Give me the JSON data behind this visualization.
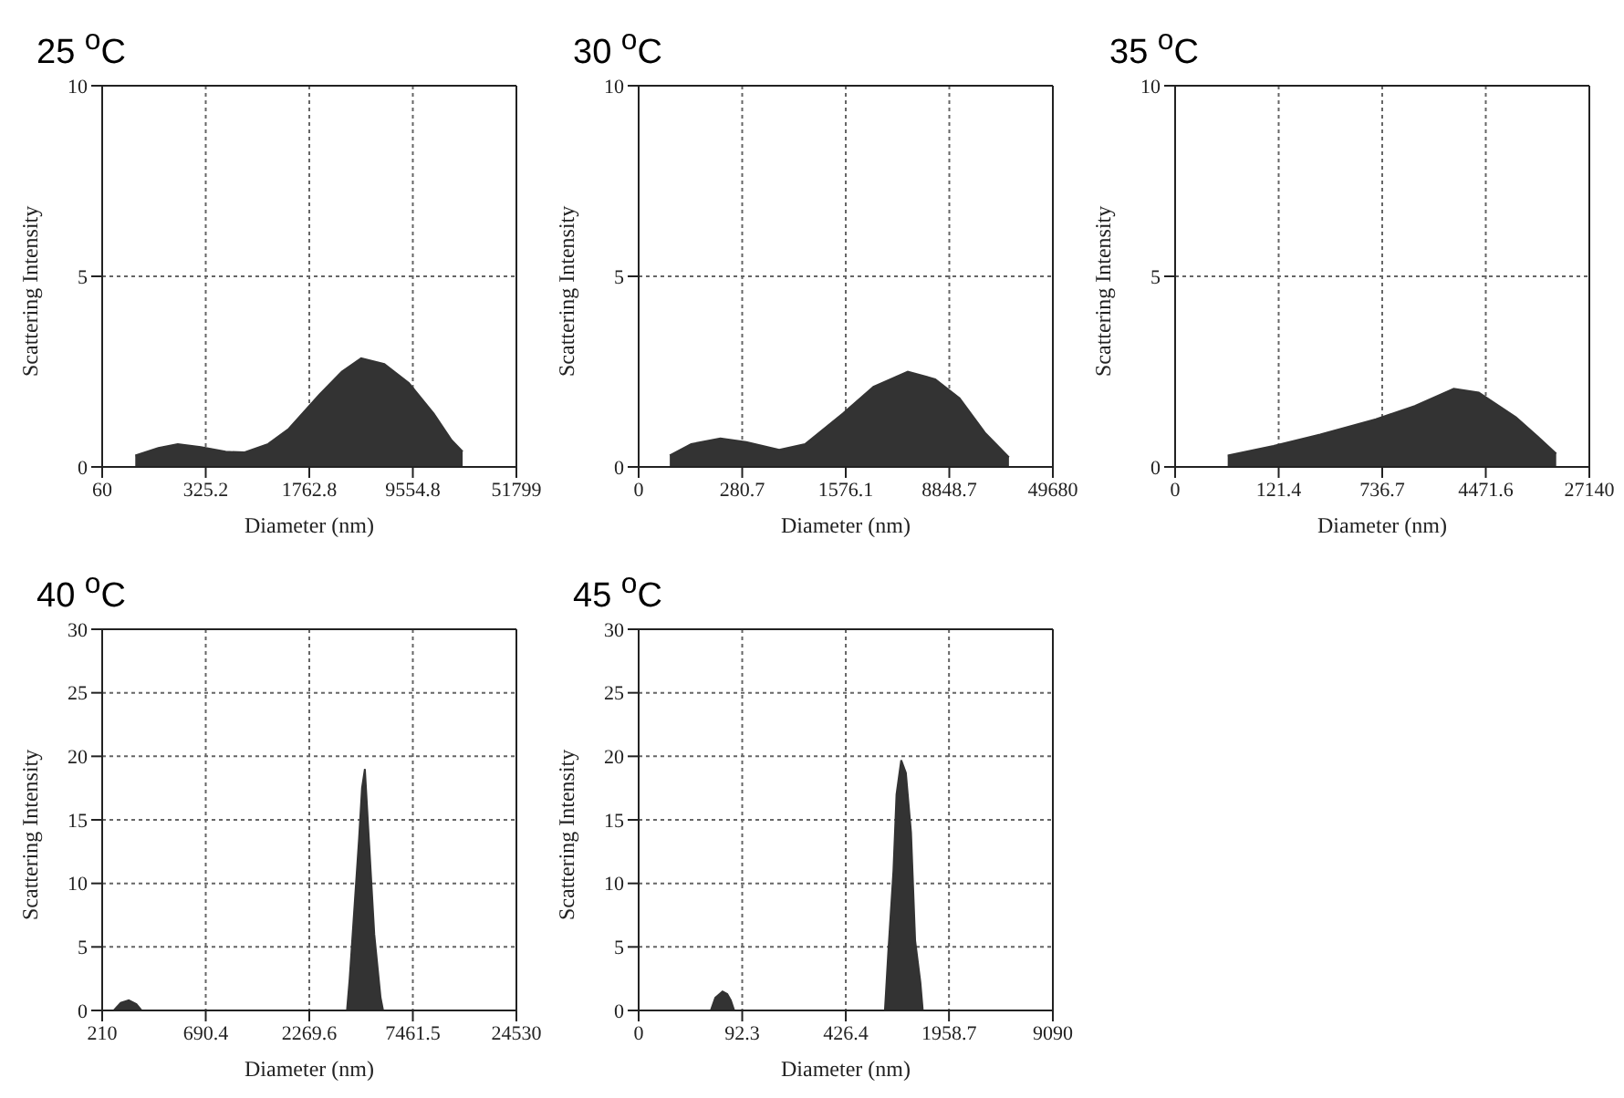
{
  "chart_data": [
    {
      "type": "area",
      "title": "25 $^{o}$C",
      "xlabel": "Diameter (nm)",
      "ylabel": "Scattering Intensity",
      "log": "x",
      "grid": true,
      "color": "#333333",
      "xlim": [
        60,
        51799
      ],
      "xticks": [
        60,
        325.2,
        1762.8,
        9554.8,
        51799
      ],
      "ylim": [
        0,
        10
      ],
      "yticks": [
        0,
        5,
        10
      ],
      "x": [
        103,
        150,
        206,
        300,
        450,
        608,
        900,
        1260,
        2080,
        3000,
        4110,
        6000,
        8950,
        13450,
        18000,
        21540
      ],
      "values": [
        0.3,
        0.5,
        0.6,
        0.52,
        0.4,
        0.38,
        0.6,
        1.0,
        1.9,
        2.5,
        2.85,
        2.7,
        2.2,
        1.4,
        0.7,
        0.4
      ]
    },
    {
      "type": "area",
      "title": "30 $^{o}$C",
      "xlabel": "Diameter (nm)",
      "ylabel": "Scattering Intensity",
      "log": "x",
      "grid": true,
      "color": "#333333",
      "xlim": [
        0,
        49680
      ],
      "xticks": [
        0,
        280.7,
        1576.1,
        8848.7,
        49680
      ],
      "ylim": [
        0,
        10
      ],
      "yticks": [
        0,
        5,
        10
      ],
      "x": [
        84,
        120,
        195,
        300,
        520,
        800,
        1500,
        2500,
        4430,
        7000,
        10500,
        16000,
        23900
      ],
      "values": [
        0.3,
        0.6,
        0.75,
        0.65,
        0.45,
        0.6,
        1.4,
        2.1,
        2.5,
        2.3,
        1.8,
        0.9,
        0.25
      ]
    },
    {
      "type": "area",
      "title": "35 $^{o}$C",
      "xlabel": "Diameter (nm)",
      "ylabel": "Scattering Intensity",
      "log": "x",
      "grid": true,
      "color": "#333333",
      "xlim": [
        0,
        27140
      ],
      "xticks": [
        0,
        121.4,
        736.7,
        4471.6,
        27140
      ],
      "ylim": [
        0,
        10
      ],
      "yticks": [
        0,
        5,
        10
      ],
      "x": [
        50,
        111,
        250,
        660,
        1300,
        2560,
        3960,
        7560,
        11000,
        15240
      ],
      "values": [
        0.3,
        0.55,
        0.85,
        1.25,
        1.6,
        2.05,
        1.95,
        1.3,
        0.8,
        0.35
      ]
    },
    {
      "type": "area",
      "title": "40 $^{o}$C",
      "xlabel": "Diameter (nm)",
      "ylabel": "Scattering Intensity",
      "log": "x",
      "grid": true,
      "color": "#333333",
      "xlim": [
        210,
        24530
      ],
      "xticks": [
        210,
        690.4,
        2269.6,
        7461.5,
        24530
      ],
      "ylim": [
        0,
        30
      ],
      "yticks": [
        0,
        5,
        10,
        15,
        20,
        25,
        30
      ],
      "x": [
        240,
        260,
        285,
        311,
        330,
        3500,
        3610,
        3790,
        4020,
        4160,
        4300,
        4520,
        4790,
        5150,
        5300
      ],
      "values": [
        0,
        0.6,
        0.8,
        0.5,
        0,
        0,
        2.5,
        7.5,
        13.5,
        17.5,
        19,
        13,
        6,
        1,
        0
      ]
    },
    {
      "type": "area",
      "title": "45 $^{o}$C",
      "xlabel": "Diameter (nm)",
      "ylabel": "Scattering Intensity",
      "log": "x",
      "grid": true,
      "color": "#333333",
      "xlim": [
        0,
        9090
      ],
      "xticks": [
        0,
        92.3,
        426.4,
        1958.7,
        9090
      ],
      "ylim": [
        0,
        30
      ],
      "yticks": [
        0,
        5,
        10,
        15,
        20,
        25,
        30
      ],
      "x": [
        58,
        62,
        69,
        74,
        78,
        82,
        760,
        798,
        862,
        902,
        967,
        1036,
        1118,
        1188,
        1284,
        1330
      ],
      "values": [
        0,
        1.0,
        1.5,
        1.3,
        0.8,
        0,
        0,
        4.5,
        11,
        17,
        19.7,
        18.7,
        14,
        5.5,
        2.2,
        0
      ]
    }
  ]
}
